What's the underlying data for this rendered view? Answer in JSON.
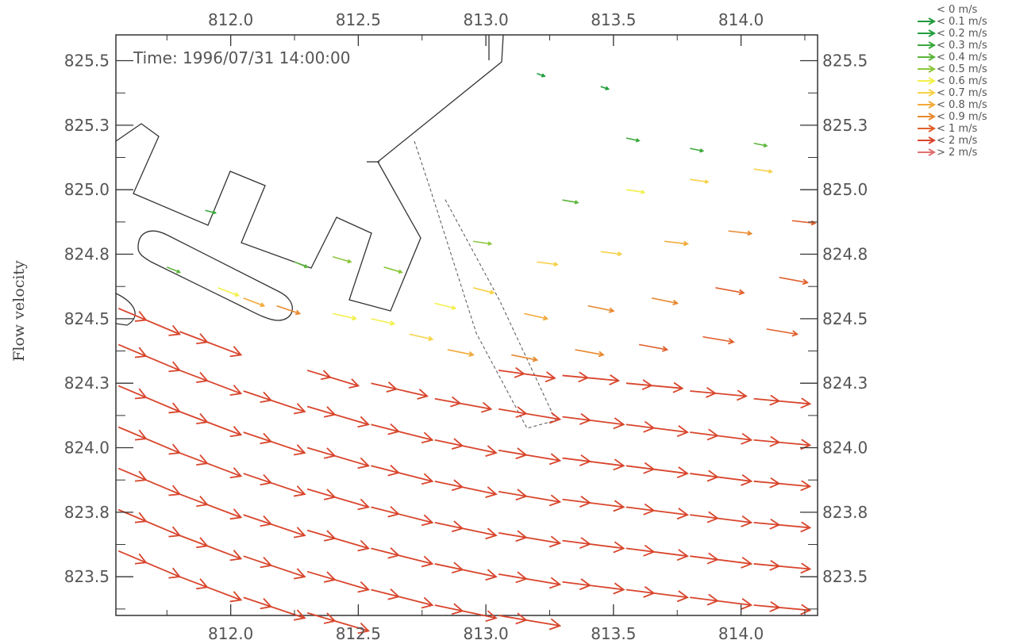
{
  "chart_data": {
    "type": "vector-field",
    "ylabel": "Flow velocity",
    "annotation": "Time: 1996/07/31 14:00:00",
    "xlim": [
      811.55,
      814.3
    ],
    "ylim": [
      823.35,
      825.6
    ],
    "x_ticks": [
      "812.0",
      "812.5",
      "813.0",
      "813.5",
      "814.0"
    ],
    "x_tick_values": [
      812.0,
      812.5,
      813.0,
      813.5,
      814.0
    ],
    "y_ticks": [
      "825.5",
      "825.3",
      "825.0",
      "824.8",
      "824.5",
      "824.3",
      "824.0",
      "823.8",
      "823.5"
    ],
    "y_tick_values": [
      825.5,
      825.25,
      825.0,
      824.75,
      824.5,
      824.25,
      824.0,
      823.75,
      823.5
    ],
    "legend": [
      {
        "label": "< 0 m/s",
        "color": ""
      },
      {
        "label": "< 0.1 m/s",
        "color": "#1f9a3c"
      },
      {
        "label": "< 0.2 m/s",
        "color": "#239f3d"
      },
      {
        "label": "< 0.3 m/s",
        "color": "#3aa83c"
      },
      {
        "label": "< 0.4 m/s",
        "color": "#5cb53a"
      },
      {
        "label": "< 0.5 m/s",
        "color": "#8cc63c"
      },
      {
        "label": "< 0.6 m/s",
        "color": "#f2f04a"
      },
      {
        "label": "< 0.7 m/s",
        "color": "#f6d24a"
      },
      {
        "label": "< 0.8 m/s",
        "color": "#f2a93a"
      },
      {
        "label": "< 0.9 m/s",
        "color": "#e8892f"
      },
      {
        "label": "< 1 m/s",
        "color": "#e0602c"
      },
      {
        "label": "< 2 m/s",
        "color": "#d8452c"
      },
      {
        "label": "> 2 m/s",
        "color": "#e07070"
      }
    ],
    "series": [
      {
        "values": [
          [
            811.56,
            823.6,
            0.24,
            -0.1,
            1.5
          ],
          [
            811.56,
            823.76,
            0.24,
            -0.1,
            1.5
          ],
          [
            811.56,
            823.92,
            0.24,
            -0.1,
            1.5
          ],
          [
            811.56,
            824.08,
            0.24,
            -0.1,
            1.5
          ],
          [
            811.56,
            824.24,
            0.24,
            -0.1,
            1.5
          ],
          [
            811.56,
            824.4,
            0.24,
            -0.1,
            1.5
          ],
          [
            811.56,
            824.54,
            0.24,
            -0.1,
            1.5
          ],
          [
            811.8,
            823.5,
            0.24,
            -0.09,
            1.5
          ],
          [
            811.8,
            823.66,
            0.24,
            -0.09,
            1.5
          ],
          [
            811.8,
            823.82,
            0.24,
            -0.09,
            1.5
          ],
          [
            811.8,
            823.98,
            0.24,
            -0.09,
            1.5
          ],
          [
            811.8,
            824.14,
            0.24,
            -0.09,
            1.5
          ],
          [
            811.8,
            824.3,
            0.24,
            -0.09,
            1.5
          ],
          [
            811.8,
            824.45,
            0.24,
            -0.09,
            1.5
          ],
          [
            812.05,
            823.42,
            0.24,
            -0.08,
            1.5
          ],
          [
            812.05,
            823.58,
            0.24,
            -0.08,
            1.5
          ],
          [
            812.05,
            823.74,
            0.24,
            -0.08,
            1.5
          ],
          [
            812.05,
            823.9,
            0.24,
            -0.08,
            1.5
          ],
          [
            812.05,
            824.06,
            0.24,
            -0.08,
            1.5
          ],
          [
            812.05,
            824.22,
            0.24,
            -0.08,
            1.5
          ],
          [
            812.3,
            823.36,
            0.24,
            -0.07,
            1.5
          ],
          [
            812.3,
            823.52,
            0.24,
            -0.07,
            1.5
          ],
          [
            812.3,
            823.68,
            0.24,
            -0.07,
            1.5
          ],
          [
            812.3,
            823.84,
            0.24,
            -0.07,
            1.5
          ],
          [
            812.3,
            824.0,
            0.24,
            -0.07,
            1.5
          ],
          [
            812.3,
            824.16,
            0.24,
            -0.07,
            1.5
          ],
          [
            812.3,
            824.3,
            0.2,
            -0.06,
            1.1
          ],
          [
            812.55,
            823.45,
            0.24,
            -0.06,
            1.5
          ],
          [
            812.55,
            823.61,
            0.24,
            -0.06,
            1.5
          ],
          [
            812.55,
            823.77,
            0.24,
            -0.06,
            1.5
          ],
          [
            812.55,
            823.93,
            0.24,
            -0.06,
            1.5
          ],
          [
            812.55,
            824.09,
            0.24,
            -0.06,
            1.5
          ],
          [
            812.55,
            824.25,
            0.22,
            -0.05,
            1.3
          ],
          [
            812.8,
            823.39,
            0.24,
            -0.05,
            1.5
          ],
          [
            812.8,
            823.55,
            0.24,
            -0.05,
            1.5
          ],
          [
            812.8,
            823.71,
            0.24,
            -0.05,
            1.5
          ],
          [
            812.8,
            823.87,
            0.24,
            -0.05,
            1.5
          ],
          [
            812.8,
            824.03,
            0.24,
            -0.05,
            1.5
          ],
          [
            812.8,
            824.19,
            0.22,
            -0.04,
            1.3
          ],
          [
            813.05,
            823.35,
            0.24,
            -0.04,
            1.5
          ],
          [
            813.05,
            823.51,
            0.24,
            -0.04,
            1.5
          ],
          [
            813.05,
            823.67,
            0.24,
            -0.04,
            1.5
          ],
          [
            813.05,
            823.83,
            0.24,
            -0.04,
            1.5
          ],
          [
            813.05,
            823.99,
            0.24,
            -0.04,
            1.5
          ],
          [
            813.05,
            824.15,
            0.24,
            -0.04,
            1.5
          ],
          [
            813.05,
            824.3,
            0.22,
            -0.03,
            1.3
          ],
          [
            813.3,
            823.48,
            0.24,
            -0.03,
            1.5
          ],
          [
            813.3,
            823.64,
            0.24,
            -0.03,
            1.5
          ],
          [
            813.3,
            823.8,
            0.24,
            -0.03,
            1.5
          ],
          [
            813.3,
            823.96,
            0.24,
            -0.03,
            1.5
          ],
          [
            813.3,
            824.12,
            0.24,
            -0.03,
            1.5
          ],
          [
            813.3,
            824.28,
            0.22,
            -0.02,
            1.3
          ],
          [
            813.55,
            823.45,
            0.24,
            -0.03,
            1.5
          ],
          [
            813.55,
            823.61,
            0.24,
            -0.03,
            1.5
          ],
          [
            813.55,
            823.77,
            0.24,
            -0.03,
            1.5
          ],
          [
            813.55,
            823.93,
            0.24,
            -0.03,
            1.5
          ],
          [
            813.55,
            824.09,
            0.24,
            -0.03,
            1.5
          ],
          [
            813.55,
            824.25,
            0.22,
            -0.02,
            1.3
          ],
          [
            813.8,
            823.42,
            0.24,
            -0.03,
            1.5
          ],
          [
            813.8,
            823.58,
            0.24,
            -0.03,
            1.5
          ],
          [
            813.8,
            823.74,
            0.24,
            -0.03,
            1.5
          ],
          [
            813.8,
            823.9,
            0.24,
            -0.03,
            1.5
          ],
          [
            813.8,
            824.06,
            0.24,
            -0.03,
            1.5
          ],
          [
            813.8,
            824.22,
            0.22,
            -0.02,
            1.3
          ],
          [
            814.05,
            823.39,
            0.22,
            -0.02,
            1.5
          ],
          [
            814.05,
            823.55,
            0.22,
            -0.02,
            1.5
          ],
          [
            814.05,
            823.71,
            0.22,
            -0.02,
            1.5
          ],
          [
            814.05,
            823.87,
            0.22,
            -0.02,
            1.5
          ],
          [
            814.05,
            824.03,
            0.22,
            -0.02,
            1.5
          ],
          [
            814.05,
            824.19,
            0.22,
            -0.02,
            1.3
          ],
          [
            811.95,
            824.62,
            0.08,
            -0.03,
            0.55
          ],
          [
            812.05,
            824.58,
            0.08,
            -0.03,
            0.7
          ],
          [
            812.18,
            824.55,
            0.09,
            -0.03,
            0.85
          ],
          [
            812.4,
            824.52,
            0.09,
            -0.02,
            0.5
          ],
          [
            812.55,
            824.5,
            0.09,
            -0.02,
            0.55
          ],
          [
            812.7,
            824.44,
            0.09,
            -0.02,
            0.65
          ],
          [
            812.85,
            824.38,
            0.1,
            -0.02,
            0.75
          ],
          [
            813.1,
            824.36,
            0.1,
            -0.02,
            0.82
          ],
          [
            813.35,
            824.38,
            0.11,
            -0.02,
            0.88
          ],
          [
            813.6,
            824.4,
            0.11,
            -0.02,
            0.92
          ],
          [
            813.85,
            824.43,
            0.12,
            -0.02,
            0.95
          ],
          [
            814.1,
            824.46,
            0.12,
            -0.02,
            0.98
          ],
          [
            812.4,
            824.74,
            0.07,
            -0.02,
            0.45
          ],
          [
            812.6,
            824.7,
            0.07,
            -0.02,
            0.48
          ],
          [
            812.8,
            824.56,
            0.08,
            -0.02,
            0.55
          ],
          [
            812.95,
            824.62,
            0.08,
            -0.02,
            0.6
          ],
          [
            813.15,
            824.52,
            0.09,
            -0.02,
            0.72
          ],
          [
            813.4,
            824.55,
            0.1,
            -0.02,
            0.82
          ],
          [
            813.65,
            824.58,
            0.1,
            -0.02,
            0.88
          ],
          [
            813.9,
            824.62,
            0.11,
            -0.02,
            0.92
          ],
          [
            814.15,
            824.66,
            0.11,
            -0.02,
            0.95
          ],
          [
            812.95,
            824.8,
            0.07,
            -0.01,
            0.4
          ],
          [
            813.2,
            824.72,
            0.08,
            -0.01,
            0.6
          ],
          [
            813.45,
            824.76,
            0.08,
            -0.01,
            0.68
          ],
          [
            813.7,
            824.8,
            0.09,
            -0.01,
            0.78
          ],
          [
            813.95,
            824.84,
            0.09,
            -0.01,
            0.85
          ],
          [
            814.2,
            824.88,
            0.09,
            -0.01,
            0.9
          ],
          [
            813.3,
            824.96,
            0.06,
            -0.01,
            0.3
          ],
          [
            813.55,
            825.0,
            0.07,
            -0.01,
            0.52
          ],
          [
            813.8,
            825.04,
            0.07,
            -0.01,
            0.6
          ],
          [
            814.05,
            825.08,
            0.07,
            -0.01,
            0.65
          ],
          [
            813.55,
            825.2,
            0.05,
            -0.01,
            0.2
          ],
          [
            813.8,
            825.16,
            0.05,
            -0.01,
            0.25
          ],
          [
            814.05,
            825.18,
            0.05,
            -0.01,
            0.3
          ],
          [
            813.2,
            825.45,
            0.03,
            -0.01,
            0.12
          ],
          [
            813.45,
            825.4,
            0.03,
            -0.01,
            0.1
          ],
          [
            811.75,
            824.7,
            0.05,
            -0.02,
            0.35
          ],
          [
            811.9,
            824.92,
            0.04,
            -0.01,
            0.2
          ],
          [
            812.25,
            824.72,
            0.05,
            -0.02,
            0.3
          ]
        ]
      }
    ],
    "grid": false
  }
}
